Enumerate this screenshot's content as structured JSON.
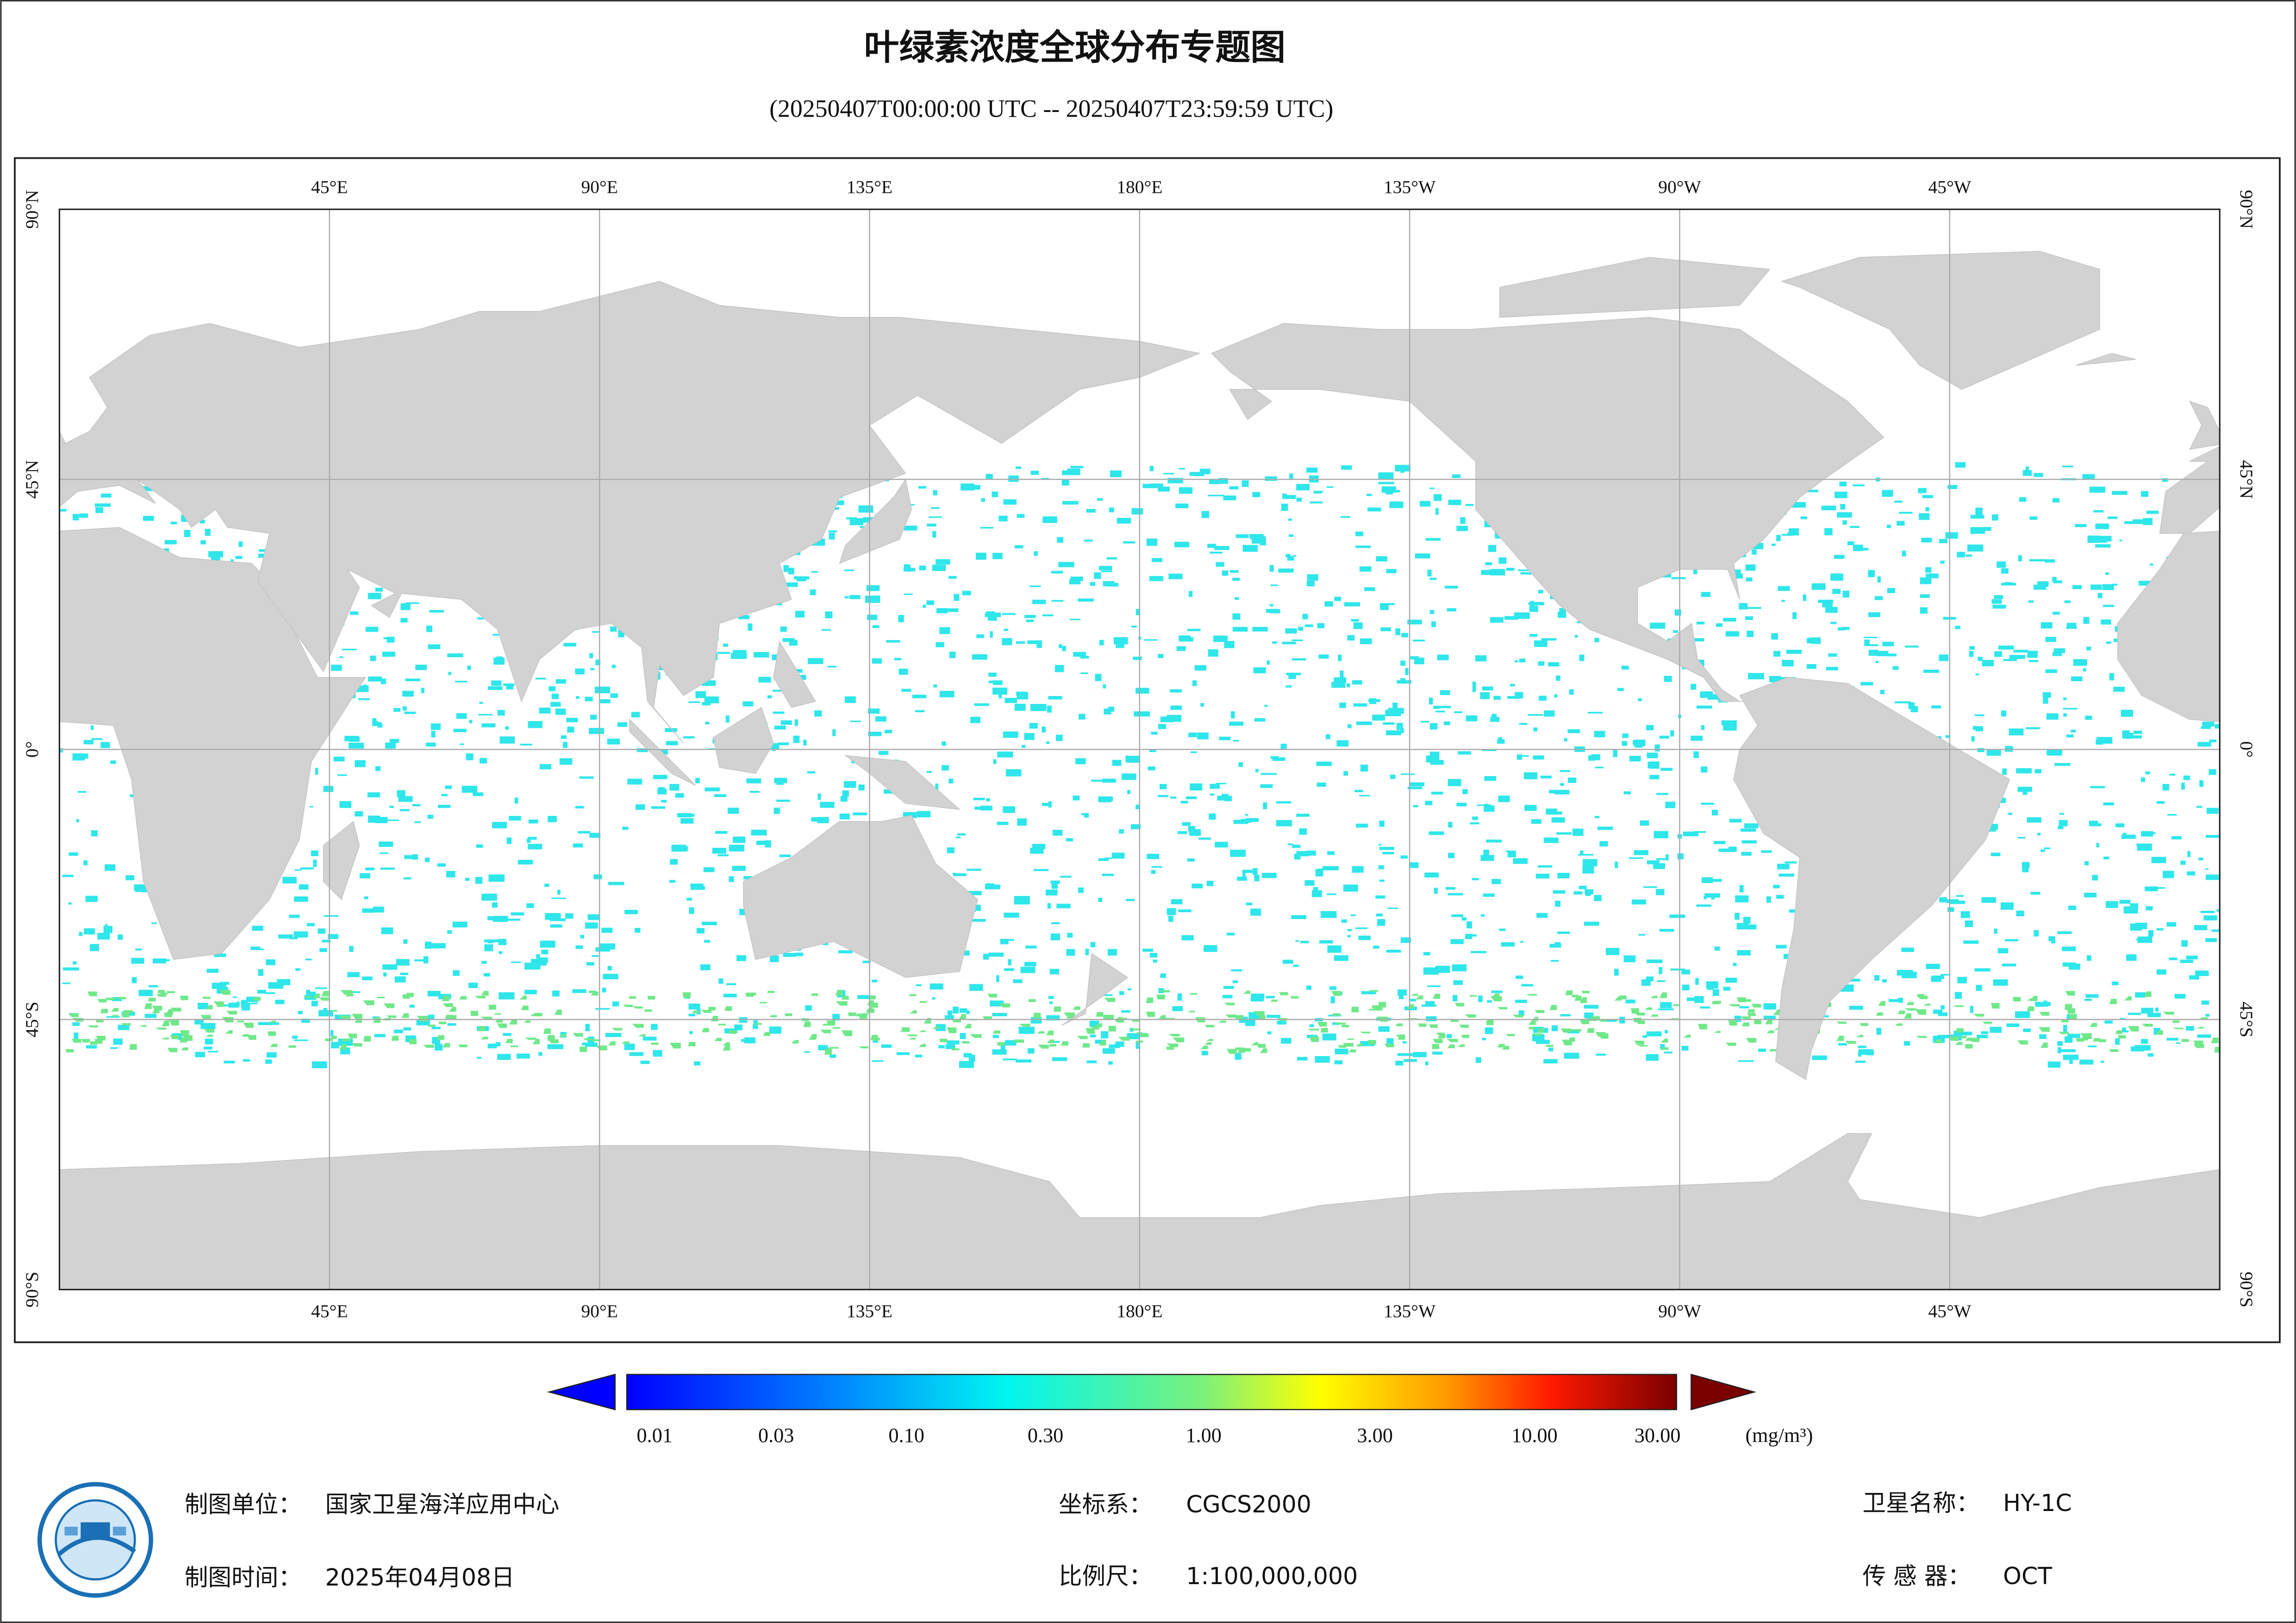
{
  "title": "叶绿素浓度全球分布专题图",
  "subtitle": "(20250407T00:00:00 UTC -- 20250407T23:59:59 UTC)",
  "map": {
    "lon_labels": [
      "45°E",
      "90°E",
      "135°E",
      "180°E",
      "135°W",
      "90°W",
      "45°W"
    ],
    "lat_labels": [
      "90°N",
      "45°N",
      "0°",
      "45°S",
      "90°S"
    ]
  },
  "colorbar": {
    "tick_labels": [
      "0.01",
      "0.03",
      "0.10",
      "0.30",
      "1.00",
      "3.00",
      "10.00",
      "30.00"
    ],
    "unit": "(mg/m³)"
  },
  "footer": {
    "items": [
      {
        "label": "制图单位：",
        "value": "国家卫星海洋应用中心"
      },
      {
        "label": "坐标系：",
        "value": "CGCS2000"
      },
      {
        "label": "卫星名称：",
        "value": "HY-1C"
      },
      {
        "label": "制图时间：",
        "value": "2025年04月08日"
      },
      {
        "label": "比例尺：",
        "value": "1:100,000,000"
      },
      {
        "label": "传 感 器：",
        "value": "OCT"
      }
    ]
  }
}
